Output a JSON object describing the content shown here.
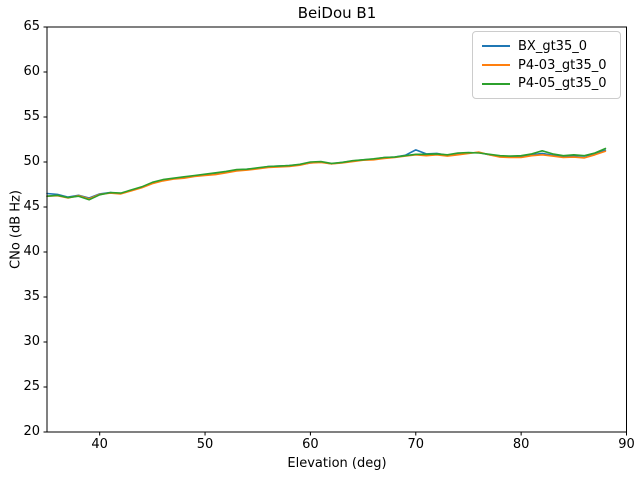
{
  "chart_data": {
    "type": "line",
    "title": "BeiDou B1",
    "xlabel": "Elevation (deg)",
    "ylabel": "CNo (dB Hz)",
    "xlim": [
      35,
      90
    ],
    "ylim": [
      20,
      65
    ],
    "xticks": [
      40,
      50,
      60,
      70,
      80,
      90
    ],
    "yticks": [
      20,
      25,
      30,
      35,
      40,
      45,
      50,
      55,
      60,
      65
    ],
    "grid": false,
    "legend_position": "upper right",
    "background": "#ffffff",
    "spine_color": "#000000",
    "x": [
      35,
      36,
      37,
      38,
      39,
      40,
      41,
      42,
      43,
      44,
      45,
      46,
      47,
      48,
      49,
      50,
      51,
      52,
      53,
      54,
      55,
      56,
      57,
      58,
      59,
      60,
      61,
      62,
      63,
      64,
      65,
      66,
      67,
      68,
      69,
      70,
      71,
      72,
      73,
      74,
      75,
      76,
      77,
      78,
      79,
      80,
      81,
      82,
      83,
      84,
      85,
      86,
      87,
      88
    ],
    "series": [
      {
        "name": "BX_gt35_0",
        "color": "#1f77b4",
        "values": [
          46.5,
          46.4,
          46.1,
          46.3,
          46.0,
          46.45,
          46.6,
          46.5,
          46.85,
          47.2,
          47.7,
          48.0,
          48.15,
          48.3,
          48.45,
          48.6,
          48.7,
          48.9,
          49.1,
          49.2,
          49.3,
          49.5,
          49.55,
          49.6,
          49.7,
          49.9,
          50.0,
          49.8,
          49.95,
          50.1,
          50.25,
          50.3,
          50.5,
          50.55,
          50.75,
          51.35,
          50.9,
          50.95,
          50.75,
          50.9,
          51.0,
          51.05,
          50.8,
          50.65,
          50.6,
          50.6,
          50.8,
          50.95,
          50.75,
          50.6,
          50.7,
          50.65,
          50.9,
          51.3
        ]
      },
      {
        "name": "P4-03_gt35_0",
        "color": "#ff7f0e",
        "values": [
          46.2,
          46.25,
          46.0,
          46.25,
          45.9,
          46.4,
          46.55,
          46.45,
          46.8,
          47.15,
          47.6,
          47.9,
          48.1,
          48.2,
          48.4,
          48.5,
          48.6,
          48.8,
          49.0,
          49.1,
          49.25,
          49.4,
          49.45,
          49.5,
          49.65,
          49.9,
          49.95,
          49.8,
          49.9,
          50.05,
          50.2,
          50.25,
          50.4,
          50.5,
          50.65,
          50.8,
          50.7,
          50.8,
          50.65,
          50.8,
          50.95,
          51.1,
          50.8,
          50.55,
          50.5,
          50.5,
          50.7,
          50.8,
          50.65,
          50.5,
          50.55,
          50.45,
          50.8,
          51.2
        ]
      },
      {
        "name": "P4-05_gt35_0",
        "color": "#2ca02c",
        "values": [
          46.2,
          46.3,
          46.05,
          46.2,
          45.8,
          46.35,
          46.6,
          46.55,
          46.9,
          47.25,
          47.75,
          48.05,
          48.2,
          48.35,
          48.5,
          48.65,
          48.8,
          48.95,
          49.15,
          49.2,
          49.35,
          49.5,
          49.55,
          49.6,
          49.75,
          50.0,
          50.05,
          49.85,
          49.95,
          50.15,
          50.25,
          50.35,
          50.5,
          50.55,
          50.7,
          50.85,
          50.85,
          50.9,
          50.8,
          51.0,
          51.05,
          51.0,
          50.85,
          50.7,
          50.65,
          50.7,
          50.9,
          51.25,
          50.9,
          50.7,
          50.8,
          50.7,
          51.0,
          51.5
        ]
      }
    ]
  }
}
